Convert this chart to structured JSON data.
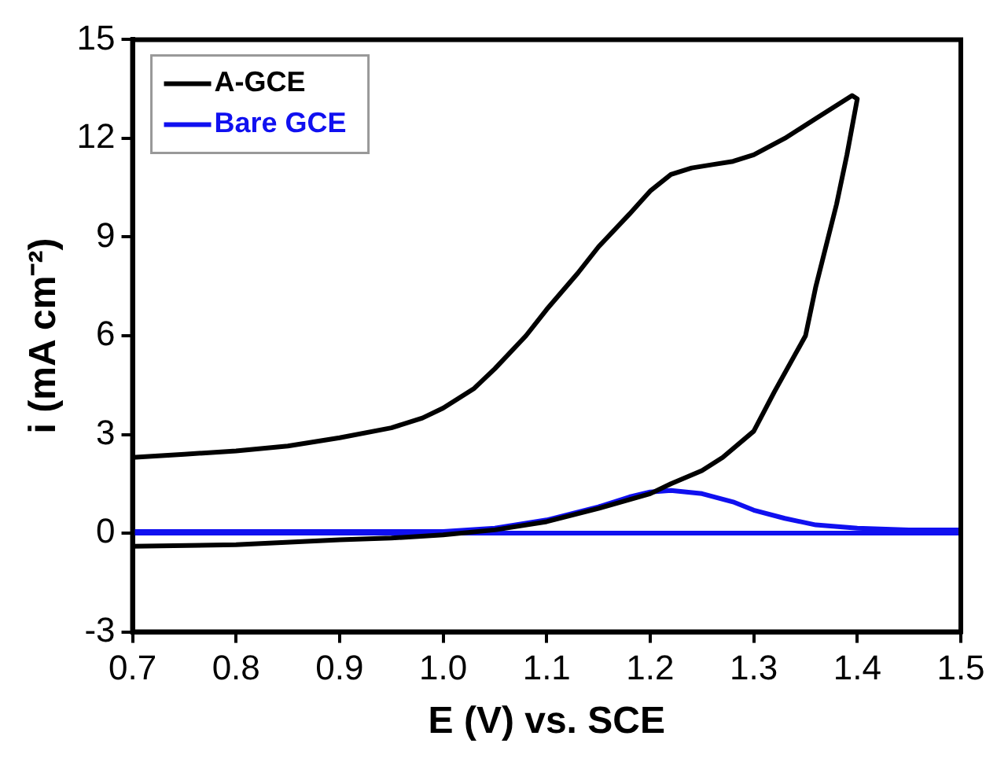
{
  "chart_data": {
    "type": "line",
    "xlabel": "E (V) vs. SCE",
    "ylabel": "i (mA cm⁻²)",
    "xlim": [
      0.7,
      1.5
    ],
    "xticks": [
      {
        "value": 0.7,
        "label": "0.7"
      },
      {
        "value": 0.8,
        "label": "0.8"
      },
      {
        "value": 0.9,
        "label": "0.9"
      },
      {
        "value": 1.0,
        "label": "1.0"
      },
      {
        "value": 1.1,
        "label": "1.1"
      },
      {
        "value": 1.2,
        "label": "1.2"
      },
      {
        "value": 1.3,
        "label": "1.3"
      },
      {
        "value": 1.4,
        "label": "1.4"
      },
      {
        "value": 1.5,
        "label": "1.5"
      }
    ],
    "ylim": [
      -3,
      15
    ],
    "yticks": [
      -3,
      0,
      3,
      6,
      9,
      12,
      15
    ],
    "grid": false,
    "legend": "top left",
    "marker": "none",
    "line_style": "solid",
    "series": [
      {
        "name": "A-GCE",
        "color": "#000000",
        "x": [
          0.7,
          0.75,
          0.8,
          0.85,
          0.9,
          0.95,
          0.98,
          1.0,
          1.03,
          1.05,
          1.08,
          1.1,
          1.13,
          1.15,
          1.18,
          1.2,
          1.22,
          1.24,
          1.26,
          1.28,
          1.3,
          1.33,
          1.36,
          1.395,
          1.4,
          1.39,
          1.38,
          1.36,
          1.35,
          1.32,
          1.3,
          1.27,
          1.25,
          1.22,
          1.2,
          1.15,
          1.1,
          1.05,
          1.0,
          0.95,
          0.9,
          0.8,
          0.7
        ],
        "values": [
          2.3,
          2.4,
          2.5,
          2.65,
          2.9,
          3.2,
          3.5,
          3.8,
          4.4,
          5.0,
          6.0,
          6.8,
          7.9,
          8.7,
          9.7,
          10.4,
          10.9,
          11.1,
          11.2,
          11.3,
          11.5,
          12.0,
          12.6,
          13.3,
          13.2,
          11.5,
          10.0,
          7.5,
          6.0,
          4.3,
          3.1,
          2.3,
          1.9,
          1.5,
          1.2,
          0.75,
          0.35,
          0.1,
          -0.05,
          -0.15,
          -0.2,
          -0.35,
          -0.4
        ]
      },
      {
        "name": "Bare GCE",
        "color": "#1010f0",
        "x": [
          0.7,
          1.0,
          1.05,
          1.1,
          1.15,
          1.18,
          1.2,
          1.22,
          1.25,
          1.28,
          1.3,
          1.33,
          1.36,
          1.4,
          1.45,
          1.5,
          1.5,
          0.7
        ],
        "values": [
          0.05,
          0.05,
          0.15,
          0.4,
          0.8,
          1.1,
          1.25,
          1.3,
          1.2,
          0.95,
          0.7,
          0.45,
          0.25,
          0.15,
          0.1,
          0.1,
          0.0,
          0.0
        ]
      }
    ]
  }
}
